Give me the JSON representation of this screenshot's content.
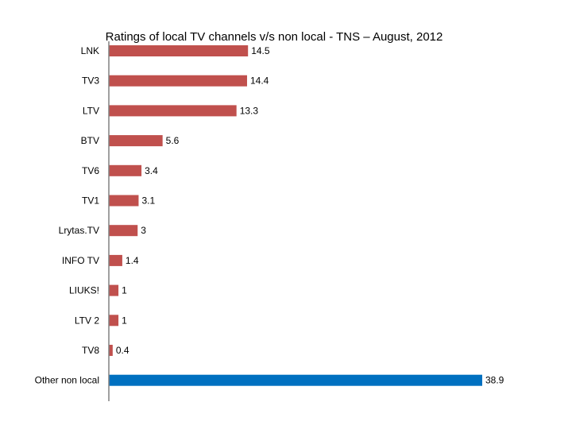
{
  "chart_data": {
    "type": "bar",
    "orientation": "horizontal",
    "title": "Ratings of local TV channels v/s non local - TNS – August, 2012",
    "xlabel": "",
    "ylabel": "",
    "grid": false,
    "legend": "none",
    "xlim": [
      0,
      38.9
    ],
    "categories": [
      "LNK",
      "TV3",
      "LTV",
      "BTV",
      "TV6",
      "TV1",
      "Lrytas.TV",
      "INFO TV",
      "LIUKS!",
      "LTV 2",
      "TV8",
      "Other non local"
    ],
    "values": [
      14.5,
      14.4,
      13.3,
      5.6,
      3.4,
      3.1,
      3,
      1.4,
      1,
      1,
      0.4,
      38.9
    ],
    "value_labels": [
      "14.5",
      "14.4",
      "13.3",
      "5.6",
      "3.4",
      "3.1",
      "3",
      "1.4",
      "1",
      "1",
      "0.4",
      "38.9"
    ],
    "colors": {
      "local": "#c0504d",
      "non_local": "#0070c0",
      "axis": "#808080"
    },
    "highlight_category": "Other non local"
  }
}
